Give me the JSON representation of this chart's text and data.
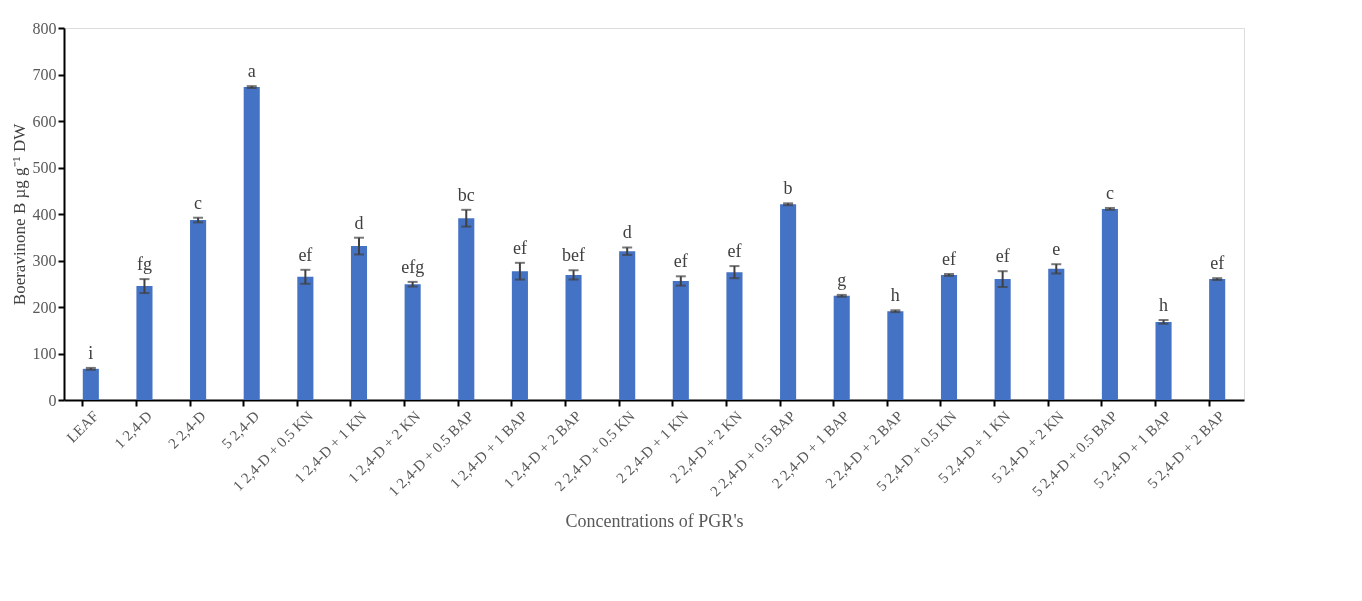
{
  "chart_data": {
    "type": "bar",
    "xlabel": "Concentrations of PGR's",
    "ylabel": "Boeravinone B µg g⁻¹ DW",
    "categories": [
      "LEAF",
      "1 2,4-D",
      "2 2,4-D",
      "5 2,4-D",
      "1 2,4-D + 0.5 KN",
      "1 2,4-D + 1 KN",
      "1 2,4-D + 2 KN",
      "1 2,4-D + 0.5 BAP",
      "1 2,4-D + 1 BAP",
      "1 2,4-D + 2 BAP",
      "2 2,4-D + 0.5 KN",
      "2 2,4-D + 1 KN",
      "2 2,4-D + 2 KN",
      "2 2,4-D + 0.5 BAP",
      "2 2,4-D + 1 BAP",
      "2 2,4-D + 2 BAP",
      "5 2,4-D + 0.5 KN",
      "5 2,4-D + 1 KN",
      "5 2,4-D + 2 KN",
      "5 2,4-D + 0.5 BAP",
      "5 2,4-D + 1 BAP",
      "5 2,4-D + 2 BAP"
    ],
    "values": [
      67,
      245,
      387,
      673,
      265,
      331,
      249,
      391,
      277,
      269,
      320,
      256,
      275,
      421,
      224,
      191,
      269,
      260,
      282,
      411,
      168,
      260
    ],
    "errors": [
      2,
      15,
      5,
      2,
      15,
      18,
      5,
      18,
      18,
      10,
      8,
      10,
      13,
      2,
      2,
      2,
      2,
      17,
      10,
      2,
      4,
      2
    ],
    "color": "#4472c4",
    "ylim": [
      0,
      800
    ],
    "yticks": [
      0,
      100,
      200,
      300,
      400,
      500,
      600,
      700,
      800
    ],
    "grid": false,
    "annotations": [
      {
        "text": "i",
        "x": "LEAF",
        "y": 69
      },
      {
        "text": "fg",
        "x": "1 2,4-D",
        "y": 260
      },
      {
        "text": "c",
        "x": "2 2,4-D",
        "y": 392
      },
      {
        "text": "a",
        "x": "5 2,4-D",
        "y": 675
      },
      {
        "text": "ef",
        "x": "1 2,4-D + 0.5 KN",
        "y": 280
      },
      {
        "text": "d",
        "x": "1 2,4-D + 1 KN",
        "y": 349
      },
      {
        "text": "efg",
        "x": "1 2,4-D + 2 KN",
        "y": 254
      },
      {
        "text": "bc",
        "x": "1 2,4-D + 0.5 BAP",
        "y": 409
      },
      {
        "text": "ef",
        "x": "1 2,4-D + 1 BAP",
        "y": 295
      },
      {
        "text": "bef",
        "x": "1 2,4-D + 2 BAP",
        "y": 279
      },
      {
        "text": "d",
        "x": "2 2,4-D + 0.5 KN",
        "y": 328
      },
      {
        "text": "ef",
        "x": "2 2,4-D + 1 KN",
        "y": 266
      },
      {
        "text": "ef",
        "x": "2 2,4-D + 2 KN",
        "y": 288
      },
      {
        "text": "b",
        "x": "2 2,4-D + 0.5 BAP",
        "y": 423
      },
      {
        "text": "g",
        "x": "2 2,4-D + 1 BAP",
        "y": 226
      },
      {
        "text": "h",
        "x": "2 2,4-D + 2 BAP",
        "y": 193
      },
      {
        "text": "ef",
        "x": "5 2,4-D + 0.5 KN",
        "y": 271
      },
      {
        "text": "ef",
        "x": "5 2,4-D + 1 KN",
        "y": 277
      },
      {
        "text": "e",
        "x": "5 2,4-D + 2 KN",
        "y": 292
      },
      {
        "text": "c",
        "x": "5 2,4-D + 0.5 BAP",
        "y": 413
      },
      {
        "text": "h",
        "x": "5 2,4-D + 1 BAP",
        "y": 172
      },
      {
        "text": "ef",
        "x": "5 2,4-D + 2 BAP",
        "y": 262
      }
    ]
  }
}
